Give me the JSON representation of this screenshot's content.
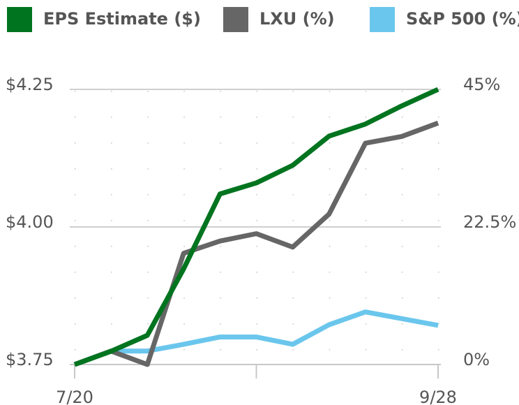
{
  "chart_data": {
    "type": "line",
    "categories": [
      "7/20",
      null,
      null,
      null,
      null,
      null,
      null,
      null,
      null,
      null,
      "9/28"
    ],
    "series": [
      {
        "name": "EPS Estimate ($)",
        "color": "#00741f",
        "axis": "y",
        "values": [
          3.75,
          3.774,
          3.803,
          3.924,
          4.06,
          4.08,
          4.112,
          4.165,
          4.187,
          4.22,
          4.25
        ]
      },
      {
        "name": "LXU (%)",
        "color": "#666666",
        "axis": "y2",
        "values": [
          0,
          2.2,
          0,
          18.2,
          20.2,
          21.4,
          19.2,
          24.6,
          36.2,
          37.3,
          39.5
        ]
      },
      {
        "name": "S&P 500 (%)",
        "color": "#6ac6ec",
        "axis": "y2",
        "values": [
          0,
          2.2,
          2.2,
          3.3,
          4.5,
          4.5,
          3.3,
          6.5,
          8.6,
          7.5,
          6.4
        ]
      }
    ],
    "ylim": [
      3.75,
      4.25
    ],
    "yticks": [
      {
        "value": 3.75,
        "label": "$3.75"
      },
      {
        "value": 4.0,
        "label": "$4.00"
      },
      {
        "value": 4.25,
        "label": "$4.25"
      }
    ],
    "y2lim": [
      0,
      45
    ],
    "y2ticks": [
      {
        "value": 0,
        "label": "0%"
      },
      {
        "value": 22.5,
        "label": "22.5%"
      },
      {
        "value": 45,
        "label": "45%"
      }
    ]
  }
}
